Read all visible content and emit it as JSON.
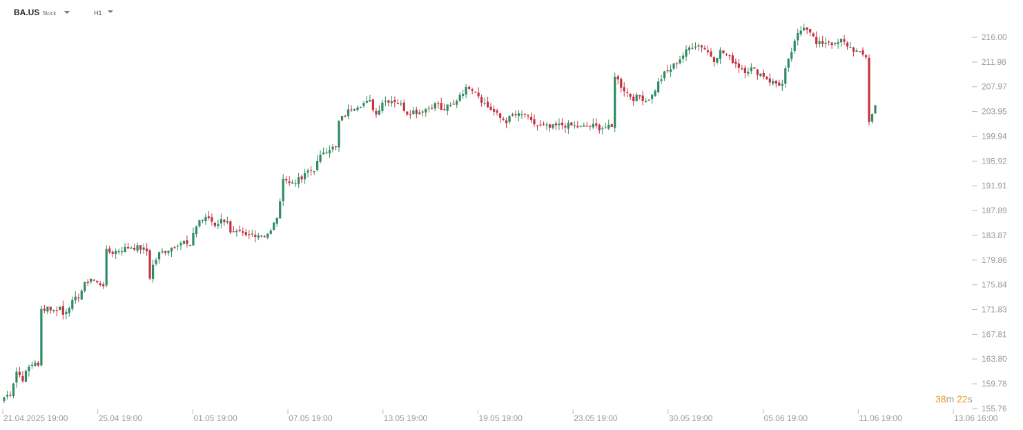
{
  "symbol": {
    "name": "BA.US",
    "type": "Stock"
  },
  "timeframe": {
    "label": "H1"
  },
  "countdown": {
    "minutes": "38",
    "minutes_unit": "m",
    "seconds": "22",
    "seconds_unit": "s"
  },
  "colors": {
    "up": "#2e8b63",
    "down": "#c8303f",
    "axis_text": "#9a9a9a",
    "tick": "#b8b8b8",
    "countdown": "#e69a1a"
  },
  "chart_data": {
    "type": "candlestick",
    "y_axis": {
      "position": "right",
      "ticks": [
        "216.00",
        "211.98",
        "207.97",
        "203.95",
        "199.94",
        "195.92",
        "191.91",
        "187.89",
        "183.87",
        "179.86",
        "175.84",
        "171.83",
        "167.81",
        "163.80",
        "159.78",
        "155.76"
      ],
      "range": [
        155.76,
        216.0
      ]
    },
    "x_axis": {
      "labels": [
        "21.04.2025  19:00",
        "25.04  19:00",
        "01.05  19:00",
        "07.05  19:00",
        "13.05  19:00",
        "19.05  19:00",
        "23.05  19:00",
        "30.05  19:00",
        "05.06  19:00",
        "11.06  19:00",
        "13.06  16:00"
      ]
    },
    "close_path": [
      [
        0,
        157.6
      ],
      [
        2,
        158.3
      ],
      [
        4,
        161.8
      ],
      [
        6,
        160.6
      ],
      [
        8,
        162.5
      ],
      [
        10,
        163.4
      ],
      [
        11,
        162.5
      ],
      [
        12,
        171.8
      ],
      [
        14,
        172.3
      ],
      [
        16,
        171.6
      ],
      [
        18,
        172.2
      ],
      [
        19,
        171.0
      ],
      [
        21,
        172.5
      ],
      [
        24,
        174.0
      ],
      [
        26,
        175.9
      ],
      [
        28,
        176.9
      ],
      [
        30,
        176.1
      ],
      [
        32,
        175.9
      ],
      [
        33,
        181.2
      ],
      [
        35,
        181.1
      ],
      [
        38,
        181.6
      ],
      [
        41,
        182.0
      ],
      [
        44,
        181.8
      ],
      [
        46,
        181.3
      ],
      [
        47,
        177.1
      ],
      [
        48,
        179.0
      ],
      [
        50,
        180.9
      ],
      [
        53,
        181.6
      ],
      [
        56,
        182.6
      ],
      [
        58,
        182.8
      ],
      [
        60,
        181.9
      ],
      [
        61,
        184.4
      ],
      [
        63,
        186.3
      ],
      [
        66,
        186.7
      ],
      [
        68,
        185.6
      ],
      [
        70,
        186.3
      ],
      [
        72,
        186.4
      ],
      [
        73,
        184.1
      ],
      [
        76,
        184.2
      ],
      [
        78,
        183.7
      ],
      [
        80,
        184.1
      ],
      [
        82,
        184.0
      ],
      [
        84,
        183.9
      ],
      [
        86,
        184.5
      ],
      [
        88,
        186.9
      ],
      [
        89,
        189.0
      ],
      [
        90,
        193.5
      ],
      [
        92,
        192.3
      ],
      [
        94,
        192.7
      ],
      [
        96,
        193.0
      ],
      [
        98,
        194.3
      ],
      [
        100,
        194.6
      ],
      [
        101,
        195.7
      ],
      [
        103,
        197.5
      ],
      [
        105,
        198.0
      ],
      [
        107,
        198.1
      ],
      [
        108,
        202.3
      ],
      [
        110,
        203.5
      ],
      [
        112,
        204.5
      ],
      [
        114,
        205.0
      ],
      [
        116,
        205.3
      ],
      [
        118,
        205.5
      ],
      [
        120,
        203.5
      ],
      [
        122,
        205.6
      ],
      [
        124,
        205.8
      ],
      [
        126,
        205.7
      ],
      [
        128,
        205.0
      ],
      [
        130,
        203.8
      ],
      [
        132,
        204.0
      ],
      [
        134,
        203.9
      ],
      [
        136,
        204.4
      ],
      [
        138,
        204.9
      ],
      [
        140,
        205.3
      ],
      [
        141,
        204.0
      ],
      [
        143,
        204.7
      ],
      [
        145,
        205.0
      ],
      [
        147,
        206.8
      ],
      [
        150,
        208.0
      ],
      [
        152,
        207.4
      ],
      [
        154,
        205.8
      ],
      [
        156,
        204.7
      ],
      [
        158,
        203.9
      ],
      [
        160,
        202.9
      ],
      [
        162,
        202.4
      ],
      [
        164,
        203.4
      ],
      [
        166,
        203.3
      ],
      [
        168,
        203.5
      ],
      [
        170,
        202.2
      ],
      [
        172,
        201.7
      ],
      [
        174,
        201.6
      ],
      [
        176,
        201.3
      ],
      [
        178,
        201.6
      ],
      [
        180,
        201.8
      ],
      [
        182,
        201.7
      ],
      [
        184,
        201.6
      ],
      [
        186,
        201.4
      ],
      [
        188,
        201.5
      ],
      [
        190,
        201.6
      ],
      [
        192,
        201.3
      ],
      [
        194,
        201.4
      ],
      [
        196,
        201.3
      ],
      [
        197,
        209.9
      ],
      [
        199,
        208.1
      ],
      [
        201,
        206.9
      ],
      [
        203,
        206.1
      ],
      [
        205,
        206.4
      ],
      [
        207,
        205.8
      ],
      [
        209,
        206.5
      ],
      [
        211,
        208.6
      ],
      [
        213,
        210.1
      ],
      [
        215,
        210.9
      ],
      [
        217,
        212.0
      ],
      [
        219,
        213.1
      ],
      [
        221,
        214.3
      ],
      [
        223,
        214.8
      ],
      [
        225,
        214.6
      ],
      [
        227,
        213.6
      ],
      [
        229,
        212.4
      ],
      [
        231,
        213.7
      ],
      [
        233,
        213.2
      ],
      [
        235,
        212.2
      ],
      [
        237,
        211.3
      ],
      [
        239,
        210.6
      ],
      [
        241,
        210.9
      ],
      [
        243,
        210.3
      ],
      [
        245,
        209.8
      ],
      [
        247,
        208.9
      ],
      [
        249,
        208.5
      ],
      [
        251,
        208.3
      ],
      [
        252,
        210.6
      ],
      [
        254,
        213.7
      ],
      [
        256,
        216.4
      ],
      [
        258,
        217.9
      ],
      [
        260,
        217.1
      ],
      [
        262,
        214.8
      ],
      [
        264,
        215.1
      ],
      [
        266,
        215.4
      ],
      [
        268,
        214.7
      ],
      [
        270,
        215.5
      ],
      [
        272,
        214.7
      ],
      [
        274,
        214.0
      ],
      [
        276,
        213.3
      ],
      [
        278,
        212.9
      ],
      [
        279,
        202.4
      ],
      [
        280,
        203.5
      ],
      [
        281,
        204.9
      ]
    ],
    "total_bars": 282
  }
}
